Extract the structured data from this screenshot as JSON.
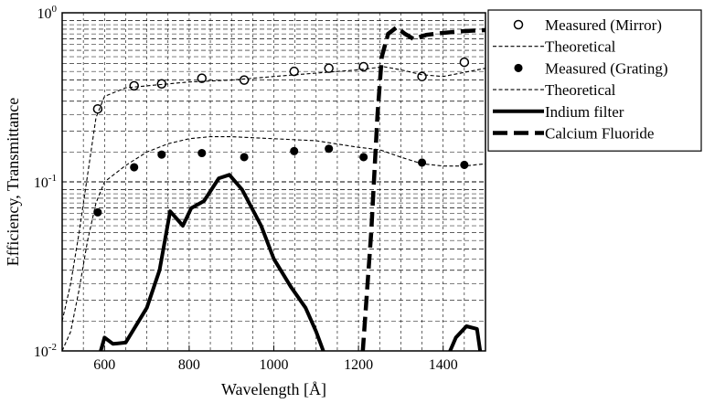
{
  "chart_data": {
    "type": "line",
    "xlabel": "Wavelength [Å]",
    "ylabel": "Efficiency, Transmittance",
    "xlim": [
      500,
      1500
    ],
    "ylim": [
      0.01,
      1
    ],
    "yscale": "log",
    "grid": true,
    "legend_position": "right",
    "x_ticks": [
      600,
      800,
      1000,
      1200,
      1400
    ],
    "y_ticks": [
      {
        "base": "10",
        "exp": "-2",
        "value": 0.01
      },
      {
        "base": "10",
        "exp": "-1",
        "value": 0.1
      },
      {
        "base": "10",
        "exp": "0",
        "value": 1
      }
    ],
    "series": [
      {
        "name": "Measured (Mirror)",
        "style": "open-circle",
        "points": [
          [
            584,
            0.27
          ],
          [
            670,
            0.37
          ],
          [
            735,
            0.38
          ],
          [
            830,
            0.41
          ],
          [
            930,
            0.4
          ],
          [
            1048,
            0.45
          ],
          [
            1130,
            0.47
          ],
          [
            1212,
            0.48
          ],
          [
            1350,
            0.42
          ],
          [
            1450,
            0.51
          ]
        ]
      },
      {
        "name": "Theoretical",
        "style": "thin-dashed",
        "points": [
          [
            500,
            0.015
          ],
          [
            520,
            0.025
          ],
          [
            540,
            0.05
          ],
          [
            560,
            0.11
          ],
          [
            580,
            0.24
          ],
          [
            600,
            0.32
          ],
          [
            650,
            0.36
          ],
          [
            700,
            0.37
          ],
          [
            800,
            0.39
          ],
          [
            900,
            0.4
          ],
          [
            1000,
            0.42
          ],
          [
            1100,
            0.44
          ],
          [
            1200,
            0.46
          ],
          [
            1260,
            0.48
          ],
          [
            1300,
            0.46
          ],
          [
            1350,
            0.43
          ],
          [
            1400,
            0.42
          ],
          [
            1500,
            0.47
          ]
        ]
      },
      {
        "name": "Measured (Grating)",
        "style": "filled-circle",
        "points": [
          [
            584,
            0.066
          ],
          [
            670,
            0.122
          ],
          [
            735,
            0.145
          ],
          [
            830,
            0.148
          ],
          [
            930,
            0.14
          ],
          [
            1048,
            0.152
          ],
          [
            1130,
            0.157
          ],
          [
            1212,
            0.14
          ],
          [
            1350,
            0.13
          ],
          [
            1450,
            0.126
          ]
        ]
      },
      {
        "name": "Theoretical",
        "style": "thin-dashed",
        "points": [
          [
            500,
            0.01
          ],
          [
            520,
            0.013
          ],
          [
            540,
            0.023
          ],
          [
            560,
            0.045
          ],
          [
            580,
            0.075
          ],
          [
            600,
            0.1
          ],
          [
            650,
            0.125
          ],
          [
            700,
            0.15
          ],
          [
            750,
            0.168
          ],
          [
            800,
            0.18
          ],
          [
            850,
            0.185
          ],
          [
            900,
            0.185
          ],
          [
            1000,
            0.18
          ],
          [
            1100,
            0.175
          ],
          [
            1200,
            0.16
          ],
          [
            1250,
            0.155
          ],
          [
            1300,
            0.14
          ],
          [
            1350,
            0.128
          ],
          [
            1400,
            0.124
          ],
          [
            1450,
            0.124
          ],
          [
            1500,
            0.128
          ]
        ]
      },
      {
        "name": "Indium filter",
        "style": "thick-solid",
        "points": [
          [
            590,
            0.0098
          ],
          [
            600,
            0.012
          ],
          [
            620,
            0.011
          ],
          [
            650,
            0.0112
          ],
          [
            700,
            0.018
          ],
          [
            730,
            0.03
          ],
          [
            755,
            0.067
          ],
          [
            785,
            0.055
          ],
          [
            805,
            0.07
          ],
          [
            835,
            0.077
          ],
          [
            870,
            0.105
          ],
          [
            895,
            0.11
          ],
          [
            925,
            0.09
          ],
          [
            970,
            0.055
          ],
          [
            1000,
            0.035
          ],
          [
            1040,
            0.024
          ],
          [
            1075,
            0.018
          ],
          [
            1100,
            0.013
          ],
          [
            1120,
            0.0095
          ]
        ],
        "extra_segment": [
          [
            1415,
            0.0098
          ],
          [
            1430,
            0.012
          ],
          [
            1455,
            0.014
          ],
          [
            1480,
            0.0135
          ],
          [
            1488,
            0.0098
          ]
        ]
      },
      {
        "name": "Calcium Fluoride",
        "style": "thick-dashed",
        "points": [
          [
            1210,
            0.0098
          ],
          [
            1230,
            0.05
          ],
          [
            1245,
            0.25
          ],
          [
            1255,
            0.55
          ],
          [
            1270,
            0.75
          ],
          [
            1290,
            0.82
          ],
          [
            1310,
            0.75
          ],
          [
            1330,
            0.7
          ],
          [
            1360,
            0.74
          ],
          [
            1400,
            0.76
          ],
          [
            1450,
            0.78
          ],
          [
            1500,
            0.79
          ]
        ]
      }
    ]
  }
}
